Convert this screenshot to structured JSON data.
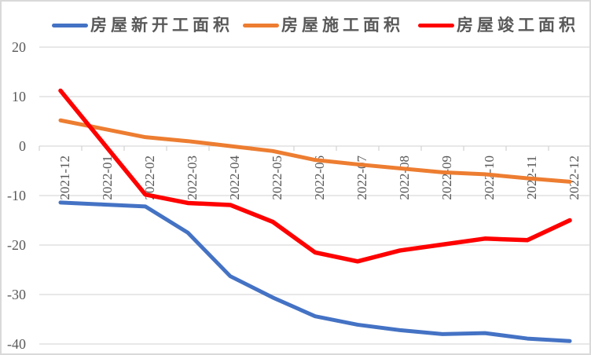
{
  "legend": [
    {
      "key": "new-starts",
      "label": "房屋新开工面积",
      "color": "#4472C4"
    },
    {
      "key": "under-construction",
      "label": "房屋施工面积",
      "color": "#ED7D31"
    },
    {
      "key": "completions",
      "label": "房屋竣工面积",
      "color": "#FF0000"
    }
  ],
  "chart_data": {
    "type": "line",
    "categories": [
      "2021-12",
      "2022-01",
      "2022-02",
      "2022-03",
      "2022-04",
      "2022-05",
      "2022-06",
      "2022-07",
      "2022-08",
      "2022-09",
      "2022-10",
      "2022-11",
      "2022-12"
    ],
    "series": [
      {
        "key": "new-starts",
        "name": "房屋新开工面积",
        "color": "#4472C4",
        "stroke_width": 5,
        "values": [
          -11.4,
          -11.8,
          -12.2,
          -17.5,
          -26.3,
          -30.6,
          -34.4,
          -36.1,
          -37.2,
          -38.0,
          -37.8,
          -38.9,
          -39.4
        ]
      },
      {
        "key": "under-construction",
        "name": "房屋施工面积",
        "color": "#ED7D31",
        "stroke_width": 5,
        "values": [
          5.2,
          3.5,
          1.8,
          1.0,
          0.0,
          -1.0,
          -2.8,
          -3.7,
          -4.5,
          -5.3,
          -5.7,
          -6.5,
          -7.2
        ]
      },
      {
        "key": "completions",
        "name": "房屋竣工面积",
        "color": "#FF0000",
        "stroke_width": 5.5,
        "values": [
          11.2,
          0.7,
          -9.8,
          -11.5,
          -11.9,
          -15.3,
          -21.5,
          -23.3,
          -21.1,
          -19.9,
          -18.7,
          -19.0,
          -15.0
        ]
      }
    ],
    "y_ticks": [
      20,
      10,
      0,
      -10,
      -20,
      -30,
      -40
    ],
    "ylim": [
      -40,
      20
    ],
    "xlabel": "",
    "ylabel": "",
    "title": "",
    "grid": true,
    "legend_position": "top",
    "x_tick_label_rotation": -90
  },
  "colors": {
    "gridline": "#D9D9D9",
    "tick": "#D2D2D2",
    "axis_text": "#595959",
    "legend_text": "#595959",
    "background": "#FFFFFF",
    "frame_border": "#D9D9D9"
  }
}
